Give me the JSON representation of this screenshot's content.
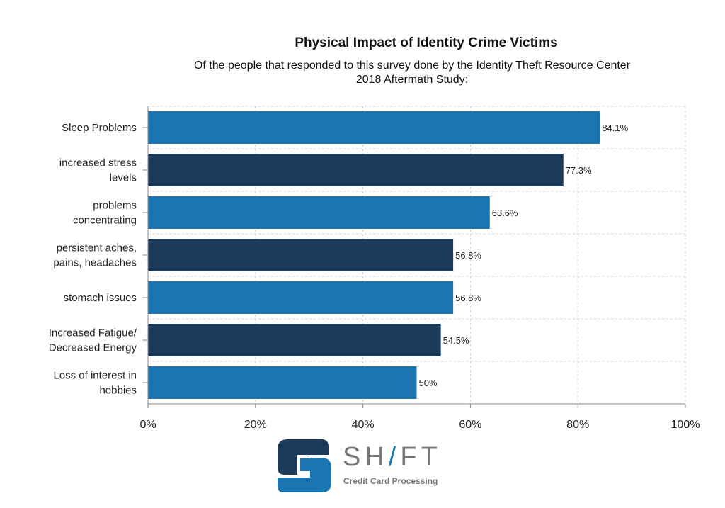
{
  "chart_data": {
    "type": "bar",
    "orientation": "horizontal",
    "title": "Physical Impact of Identity Crime Victims",
    "subtitle": "Of the people that responded to this survey done by the Identity Theft Resource Center 2018 Aftermath Study:",
    "categories": [
      [
        "Sleep Problems"
      ],
      [
        "increased stress",
        "levels"
      ],
      [
        "problems",
        "concentrating"
      ],
      [
        "persistent aches,",
        "pains, headaches"
      ],
      [
        "stomach issues"
      ],
      [
        "Increased Fatigue/",
        "Decreased Energy"
      ],
      [
        "Loss of interest in",
        "hobbies"
      ]
    ],
    "values": [
      84.1,
      77.3,
      63.6,
      56.8,
      56.8,
      54.5,
      50
    ],
    "data_labels": [
      "84.1%",
      "77.3%",
      "63.6%",
      "56.8%",
      "56.8%",
      "54.5%",
      "50%"
    ],
    "xlim": [
      0,
      100
    ],
    "xticks": [
      "0%",
      "20%",
      "40%",
      "60%",
      "80%",
      "100%"
    ],
    "grid": true,
    "colors": [
      "#1a75b0",
      "#1b3a5c"
    ]
  },
  "logo": {
    "word_1": "SH",
    "word_i": "/",
    "word_2": "FT",
    "tagline": "Credit Card Processing"
  }
}
